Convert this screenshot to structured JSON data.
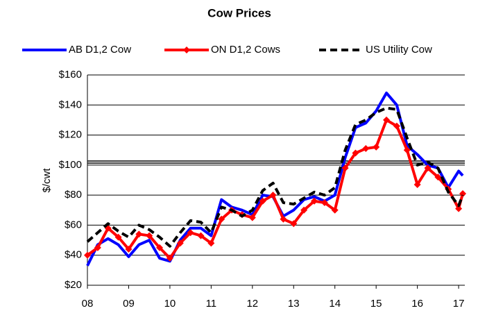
{
  "chart_data": {
    "type": "line",
    "title": "Cow Prices",
    "ylabel": "$/cwt",
    "x": [
      8,
      8.25,
      8.5,
      8.75,
      9,
      9.25,
      9.5,
      9.75,
      10,
      10.25,
      10.5,
      10.75,
      11,
      11.25,
      11.5,
      11.75,
      12,
      12.25,
      12.5,
      12.75,
      13,
      13.25,
      13.5,
      13.75,
      14,
      14.25,
      14.5,
      14.75,
      15,
      15.25,
      15.5,
      15.75,
      16,
      16.25,
      16.5,
      16.75,
      17,
      17.1
    ],
    "series": [
      {
        "name": "AB D1,2 Cow",
        "color": "#0000ff",
        "style": "solid",
        "marker": "none",
        "values": [
          33,
          47,
          51,
          47,
          39,
          47,
          50,
          38,
          36,
          50,
          58,
          58,
          53,
          77,
          72,
          70,
          67,
          80,
          79,
          66,
          70,
          77,
          79,
          76,
          80,
          105,
          125,
          128,
          136,
          148,
          140,
          113,
          107,
          100,
          98,
          85,
          96,
          93
        ]
      },
      {
        "name": "ON D1,2 Cows",
        "color": "#ff0000",
        "style": "solid",
        "marker": "diamond",
        "values": [
          40,
          45,
          58,
          52,
          44,
          54,
          53,
          45,
          38,
          48,
          55,
          53,
          48,
          64,
          70,
          67,
          65,
          76,
          80,
          64,
          61,
          70,
          76,
          75,
          70,
          98,
          108,
          111,
          112,
          130,
          126,
          110,
          87,
          98,
          92,
          84,
          71,
          81
        ]
      },
      {
        "name": "US Utility Cow",
        "color": "#000000",
        "style": "dashed",
        "marker": "none",
        "values": [
          49,
          55,
          61,
          56,
          52,
          60,
          57,
          52,
          46,
          55,
          63,
          62,
          55,
          72,
          70,
          66,
          70,
          83,
          88,
          75,
          74,
          78,
          82,
          80,
          85,
          110,
          127,
          130,
          135,
          138,
          137,
          118,
          100,
          102,
          98,
          82,
          73,
          80
        ]
      }
    ],
    "xlim": [
      8,
      17.15
    ],
    "xticks": [
      {
        "value": 8,
        "label": "08"
      },
      {
        "value": 9,
        "label": "09"
      },
      10,
      11,
      12,
      13,
      14,
      15,
      16,
      17
    ],
    "ylim": [
      20,
      160
    ],
    "yticks": [
      {
        "value": 20,
        "label": "$20"
      },
      {
        "value": 40,
        "label": "$40"
      },
      {
        "value": 60,
        "label": "$60"
      },
      {
        "value": 80,
        "label": "$80"
      },
      {
        "value": 100,
        "label": "$100"
      },
      {
        "value": 120,
        "label": "$120"
      },
      {
        "value": 140,
        "label": "$140"
      },
      {
        "value": 160,
        "label": "$160"
      }
    ],
    "reference_lines": [
      102
    ],
    "grid": true,
    "legend": "top"
  }
}
